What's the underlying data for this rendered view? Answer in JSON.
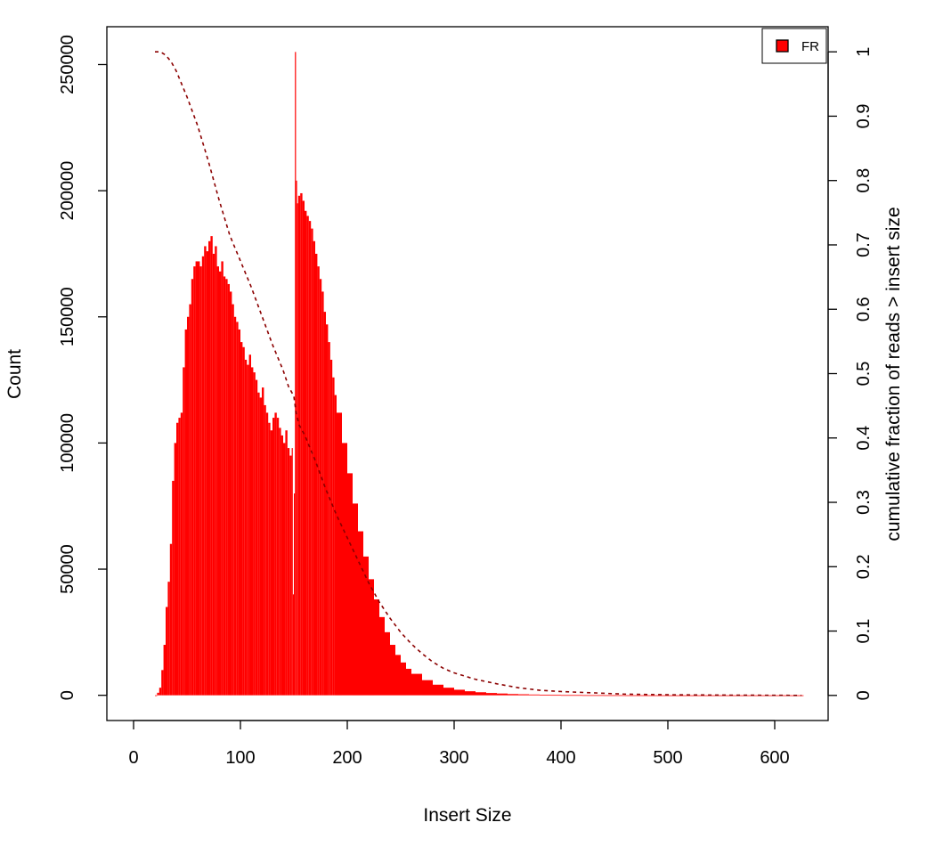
{
  "chart_data": {
    "type": "bar",
    "xlabel": "Insert Size",
    "ylabel": "Count",
    "y2label": "cumulative fraction of reads > insert size",
    "xlim": [
      -25,
      650
    ],
    "ylim": [
      -10000,
      265000
    ],
    "y2lim": [
      -0.039,
      1.039
    ],
    "x_ticks": [
      0,
      100,
      200,
      300,
      400,
      500,
      600
    ],
    "y_ticks": [
      0,
      50000,
      100000,
      150000,
      200000,
      250000
    ],
    "y2_ticks": [
      0,
      0.1,
      0.2,
      0.3,
      0.4,
      0.5,
      0.6,
      0.7,
      0.8,
      0.9,
      1
    ],
    "legend": {
      "position": "top-right",
      "entries": [
        {
          "label": "FR",
          "color": "#ff0000"
        }
      ]
    },
    "colors": {
      "bars": "#ff0000",
      "cumulative_line": "#8b0000"
    },
    "series": [
      {
        "name": "FR",
        "type": "histogram",
        "x": [
          20,
          22,
          24,
          26,
          28,
          30,
          32,
          34,
          36,
          38,
          40,
          42,
          44,
          46,
          48,
          50,
          52,
          54,
          56,
          58,
          60,
          62,
          64,
          66,
          68,
          70,
          72,
          74,
          76,
          78,
          80,
          82,
          84,
          86,
          88,
          90,
          92,
          94,
          96,
          98,
          100,
          102,
          104,
          106,
          108,
          110,
          112,
          114,
          116,
          118,
          120,
          122,
          124,
          126,
          128,
          130,
          132,
          134,
          136,
          138,
          140,
          142,
          144,
          146,
          148,
          149,
          150,
          151,
          152,
          153,
          154,
          156,
          158,
          160,
          162,
          164,
          166,
          168,
          170,
          172,
          174,
          176,
          178,
          180,
          182,
          184,
          186,
          188,
          190,
          195,
          200,
          205,
          210,
          215,
          220,
          225,
          230,
          235,
          240,
          245,
          250,
          255,
          260,
          270,
          280,
          290,
          300,
          310,
          320,
          330,
          340,
          350,
          360,
          370,
          380,
          390,
          400,
          420,
          440,
          460,
          480,
          500,
          525,
          550,
          575,
          600,
          625
        ],
        "values": [
          0,
          1000,
          3000,
          10000,
          20000,
          35000,
          45000,
          60000,
          85000,
          100000,
          108000,
          110000,
          112000,
          130000,
          145000,
          150000,
          155000,
          165000,
          170000,
          172000,
          172000,
          170000,
          174000,
          178000,
          176000,
          180000,
          182000,
          175000,
          178000,
          170000,
          168000,
          172000,
          166000,
          165000,
          163000,
          160000,
          155000,
          150000,
          148000,
          145000,
          140000,
          138000,
          133000,
          131000,
          135000,
          130000,
          128000,
          125000,
          120000,
          118000,
          122000,
          115000,
          112000,
          108000,
          105000,
          110000,
          112000,
          110000,
          106000,
          103000,
          100000,
          105000,
          98000,
          95000,
          98000,
          40000,
          80000,
          255000,
          204000,
          195000,
          198000,
          199000,
          196000,
          192000,
          190000,
          188000,
          185000,
          180000,
          175000,
          170000,
          165000,
          160000,
          152000,
          147000,
          140000,
          133000,
          126000,
          119000,
          112000,
          100000,
          88000,
          76000,
          65000,
          55000,
          46000,
          38000,
          31000,
          25000,
          20000,
          16000,
          13000,
          10500,
          8500,
          6000,
          4200,
          3000,
          2200,
          1600,
          1200,
          900,
          700,
          500,
          400,
          300,
          200,
          150,
          100,
          60,
          40,
          20,
          10,
          0,
          0,
          0,
          0,
          0,
          0
        ]
      },
      {
        "name": "cumulative",
        "type": "line",
        "style": "dashed",
        "axis": "right",
        "x": [
          20,
          25,
          30,
          35,
          40,
          50,
          60,
          70,
          80,
          90,
          100,
          110,
          120,
          130,
          140,
          145,
          150,
          152,
          155,
          160,
          170,
          180,
          190,
          200,
          210,
          220,
          230,
          240,
          250,
          260,
          270,
          280,
          290,
          300,
          320,
          340,
          360,
          380,
          400,
          430,
          460,
          500,
          550,
          600,
          625
        ],
        "values": [
          1.0,
          1.0,
          0.995,
          0.985,
          0.97,
          0.93,
          0.885,
          0.83,
          0.77,
          0.715,
          0.675,
          0.635,
          0.59,
          0.545,
          0.505,
          0.48,
          0.465,
          0.44,
          0.42,
          0.405,
          0.365,
          0.32,
          0.28,
          0.245,
          0.21,
          0.175,
          0.145,
          0.12,
          0.098,
          0.08,
          0.065,
          0.052,
          0.042,
          0.035,
          0.025,
          0.018,
          0.012,
          0.008,
          0.006,
          0.004,
          0.002,
          0.001,
          0.0005,
          0.0002,
          0
        ]
      }
    ]
  }
}
